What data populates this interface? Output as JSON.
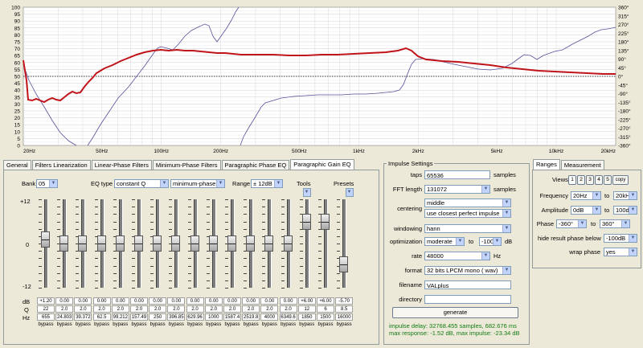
{
  "plot": {
    "y_left_labels": [
      "100",
      "95",
      "90",
      "85",
      "80",
      "75",
      "70",
      "65",
      "60",
      "55",
      "50",
      "45",
      "40",
      "35",
      "30",
      "25",
      "20",
      "15",
      "10",
      "5",
      "0"
    ],
    "y_right_labels": [
      "360°",
      "315°",
      "270°",
      "225°",
      "180°",
      "135°",
      "90°",
      "45°",
      "0°",
      "-45°",
      "-90°",
      "-135°",
      "-180°",
      "-225°",
      "-270°",
      "-315°",
      "-360°"
    ],
    "x_labels": [
      "20Hz",
      "50Hz",
      "100Hz",
      "200Hz",
      "500Hz",
      "1kHz",
      "2kHz",
      "5kHz",
      "10kHz",
      "20kHz"
    ],
    "colors": {
      "magnitude": "#c0141a",
      "phase": "#5a4f9a",
      "grid": "#d4d4d4",
      "bg": "#ffffff"
    }
  },
  "tabs": [
    "General",
    "Filters Linearization",
    "Linear-Phase Filters",
    "Minimum-Phase Filters",
    "Paragraphic Phase EQ",
    "Paragraphic Gain EQ"
  ],
  "eq": {
    "bank_label": "Bank",
    "bank_value": "05",
    "eqtype_label": "EQ type",
    "eqtype_value": "constant Q",
    "phase_value": "minimum-phase",
    "range_label": "Range",
    "range_value": "± 12dB",
    "tools_label": "Tools",
    "presets_label": "Presets",
    "scale": [
      "+12",
      "0",
      "-12"
    ],
    "row_labels": [
      "dB",
      "Q",
      "Hz"
    ],
    "bands": [
      {
        "db": "+1.20",
        "q": "22",
        "hz": "655"
      },
      {
        "db": "0.00",
        "q": "2.0",
        "hz": "24.803"
      },
      {
        "db": "0.00",
        "q": "2.0",
        "hz": "39.372"
      },
      {
        "db": "0.00",
        "q": "2.0",
        "hz": "62.5"
      },
      {
        "db": "0.00",
        "q": "2.0",
        "hz": "99.212"
      },
      {
        "db": "0.00",
        "q": "2.0",
        "hz": "157.49"
      },
      {
        "db": "0.00",
        "q": "2.0",
        "hz": "250"
      },
      {
        "db": "0.00",
        "q": "2.0",
        "hz": "396.85"
      },
      {
        "db": "0.00",
        "q": "2.0",
        "hz": "629.96"
      },
      {
        "db": "0.00",
        "q": "2.0",
        "hz": "1000"
      },
      {
        "db": "0.00",
        "q": "2.0",
        "hz": "1587.4"
      },
      {
        "db": "0.00",
        "q": "2.0",
        "hz": "2519.8"
      },
      {
        "db": "0.00",
        "q": "2.0",
        "hz": "4000"
      },
      {
        "db": "0.00",
        "q": "2.0",
        "hz": "6349.6"
      },
      {
        "db": "+6.00",
        "q": "12",
        "hz": "1850"
      },
      {
        "db": "+6.00",
        "q": "6",
        "hz": "1500"
      },
      {
        "db": "-5.70",
        "q": "8.5",
        "hz": "16000"
      }
    ],
    "bypass_label": "bypass"
  },
  "impulse": {
    "title": "Impulse Settings",
    "taps_label": "taps",
    "taps_value": "65536",
    "taps_unit": "samples",
    "fft_label": "FFT length",
    "fft_value": "131072",
    "fft_unit": "samples",
    "centering_label": "centering",
    "centering_value": "middle",
    "centering_value2": "use closest perfect impulse",
    "windowing_label": "windowing",
    "windowing_value": "hann",
    "optimization_label": "optimization",
    "optimization_value": "moderate",
    "to_label": "to",
    "optimization_to": "-100",
    "db_unit": "dB",
    "rate_label": "rate",
    "rate_value": "48000",
    "rate_unit": "Hz",
    "format_label": "format",
    "format_value": "32 bits LPCM mono ( wav)",
    "filename_label": "filename",
    "filename_value": "VALplus",
    "directory_label": "directory",
    "directory_value": "",
    "generate_label": "generate",
    "status1": "impulse delay: 32768.455 samples, 682.676 ms",
    "status2": "max response: -1.52 dB, max impulse: -23.34 dB"
  },
  "ranges": {
    "tabs": [
      "Ranges",
      "Measurement"
    ],
    "views_label": "Views",
    "views": [
      "1",
      "2",
      "3",
      "4",
      "5"
    ],
    "copy_label": "copy",
    "frequency_label": "Frequency",
    "freq_from": "20Hz",
    "to_label": "to",
    "freq_to": "20kHz",
    "amplitude_label": "Amplitude",
    "amp_from": "0dB",
    "amp_to": "100dB",
    "phase_label": "Phase",
    "phase_from": "-360°",
    "phase_to": "360°",
    "hide_label": "hide result phase below",
    "hide_value": "-100dB",
    "wrap_label": "wrap phase",
    "wrap_value": "yes"
  }
}
